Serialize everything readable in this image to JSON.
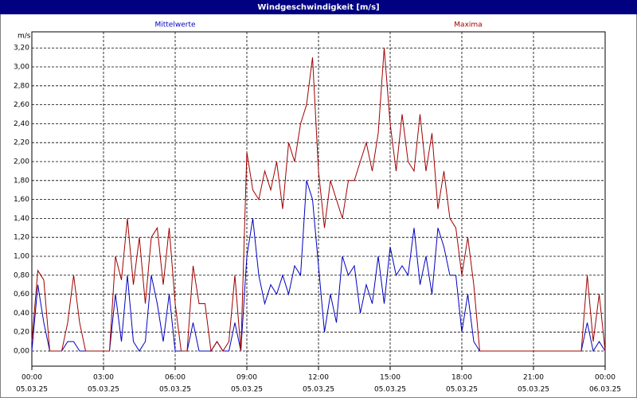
{
  "chart_data": {
    "type": "line",
    "title": "Windgeschwindigkeit [m/s]",
    "y_unit": "m/s",
    "x": [
      0,
      0.25,
      0.5,
      0.75,
      1,
      1.25,
      1.5,
      1.75,
      2,
      2.25,
      2.5,
      2.75,
      3,
      3.25,
      3.5,
      3.75,
      4,
      4.25,
      4.5,
      4.75,
      5,
      5.25,
      5.5,
      5.75,
      6,
      6.25,
      6.5,
      6.75,
      7,
      7.25,
      7.5,
      7.75,
      8,
      8.25,
      8.5,
      8.75,
      9,
      9.25,
      9.5,
      9.75,
      10,
      10.25,
      10.5,
      10.75,
      11,
      11.25,
      11.5,
      11.75,
      12,
      12.25,
      12.5,
      12.75,
      13,
      13.25,
      13.5,
      13.75,
      14,
      14.25,
      14.5,
      14.75,
      15,
      15.25,
      15.5,
      15.75,
      16,
      16.25,
      16.5,
      16.75,
      17,
      17.25,
      17.5,
      17.75,
      18,
      18.25,
      18.5,
      18.75,
      19,
      19.25,
      19.5,
      19.75,
      20,
      20.25,
      20.5,
      20.75,
      21,
      21.25,
      21.5,
      21.75,
      22,
      22.25,
      22.5,
      22.75,
      23,
      23.25,
      23.5,
      23.75,
      24
    ],
    "series": [
      {
        "name": "Mittelwerte",
        "color": "#0000c0",
        "values": [
          0,
          0.7,
          0.3,
          0,
          0,
          0,
          0.1,
          0.1,
          0,
          0,
          0,
          0,
          0,
          0,
          0.6,
          0.1,
          0.8,
          0.1,
          0,
          0.1,
          0.8,
          0.5,
          0.1,
          0.6,
          0,
          0,
          0,
          0.3,
          0,
          0,
          0,
          0.1,
          0,
          0,
          0.3,
          0,
          1.0,
          1.4,
          0.8,
          0.5,
          0.7,
          0.6,
          0.8,
          0.6,
          0.9,
          0.8,
          1.8,
          1.6,
          0.9,
          0.2,
          0.6,
          0.3,
          1.0,
          0.8,
          0.9,
          0.4,
          0.7,
          0.5,
          1.0,
          0.5,
          1.1,
          0.8,
          0.9,
          0.8,
          1.3,
          0.7,
          1.0,
          0.6,
          1.3,
          1.1,
          0.8,
          0.8,
          0.2,
          0.6,
          0.1,
          0,
          0,
          0,
          0,
          0,
          0,
          0,
          0,
          0,
          0,
          0,
          0,
          0,
          0,
          0,
          0,
          0,
          0,
          0.3,
          0,
          0.1,
          0
        ]
      },
      {
        "name": "Maxima",
        "color": "#a00000",
        "values": [
          0.1,
          0.85,
          0.75,
          0,
          0,
          0,
          0.3,
          0.8,
          0.3,
          0,
          0,
          0,
          0,
          0,
          1.0,
          0.75,
          1.4,
          0.7,
          1.2,
          0.5,
          1.2,
          1.3,
          0.7,
          1.3,
          0.5,
          0,
          0,
          0.9,
          0.5,
          0.5,
          0,
          0.1,
          0,
          0.1,
          0.8,
          0,
          2.1,
          1.7,
          1.6,
          1.9,
          1.7,
          2.0,
          1.5,
          2.2,
          2.0,
          2.4,
          2.6,
          3.1,
          1.9,
          1.3,
          1.8,
          1.6,
          1.4,
          1.8,
          1.8,
          2.0,
          2.2,
          1.9,
          2.3,
          3.2,
          2.4,
          1.9,
          2.5,
          2.0,
          1.9,
          2.5,
          1.9,
          2.3,
          1.5,
          1.9,
          1.4,
          1.3,
          0.8,
          1.2,
          0.7,
          0,
          0,
          0,
          0,
          0,
          0,
          0,
          0,
          0,
          0,
          0,
          0,
          0,
          0,
          0,
          0,
          0,
          0,
          0.8,
          0.1,
          0.6,
          0
        ]
      }
    ],
    "xlim": [
      0,
      24
    ],
    "xticks": [
      {
        "value": 0,
        "label": "00:00",
        "date": "05.03.25"
      },
      {
        "value": 3,
        "label": "03:00",
        "date": "05.03.25"
      },
      {
        "value": 6,
        "label": "06:00",
        "date": "05.03.25"
      },
      {
        "value": 9,
        "label": "09:00",
        "date": "05.03.25"
      },
      {
        "value": 12,
        "label": "12:00",
        "date": "05.03.25"
      },
      {
        "value": 15,
        "label": "15:00",
        "date": "05.03.25"
      },
      {
        "value": 18,
        "label": "18:00",
        "date": "05.03.25"
      },
      {
        "value": 21,
        "label": "21:00",
        "date": "05.03.25"
      },
      {
        "value": 24,
        "label": "00:00",
        "date": "06.03.25"
      }
    ],
    "ylim": [
      -0.16,
      3.37
    ],
    "yticks": [
      {
        "value": 0,
        "label": "0,00"
      },
      {
        "value": 0.2,
        "label": "0,20"
      },
      {
        "value": 0.4,
        "label": "0,40"
      },
      {
        "value": 0.6,
        "label": "0,60"
      },
      {
        "value": 0.8,
        "label": "0,80"
      },
      {
        "value": 1.0,
        "label": "1,00"
      },
      {
        "value": 1.2,
        "label": "1,20"
      },
      {
        "value": 1.4,
        "label": "1,40"
      },
      {
        "value": 1.6,
        "label": "1,60"
      },
      {
        "value": 1.8,
        "label": "1,80"
      },
      {
        "value": 2.0,
        "label": "2,00"
      },
      {
        "value": 2.2,
        "label": "2,20"
      },
      {
        "value": 2.4,
        "label": "2,40"
      },
      {
        "value": 2.6,
        "label": "2,60"
      },
      {
        "value": 2.8,
        "label": "2,80"
      },
      {
        "value": 3.0,
        "label": "3,00"
      },
      {
        "value": 3.2,
        "label": "3,20"
      }
    ],
    "grid": true
  }
}
